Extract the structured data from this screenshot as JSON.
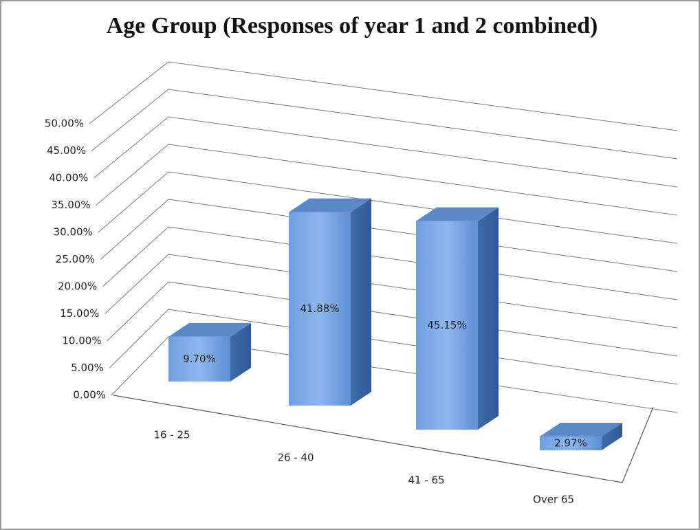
{
  "chart_data": {
    "type": "bar3d",
    "title": "Age Group (Responses of year 1 and 2 combined)",
    "categories": [
      "16 - 25",
      "26 - 40",
      "41 - 65",
      "Over 65"
    ],
    "values": [
      9.7,
      41.88,
      45.15,
      2.97
    ],
    "value_labels": [
      "9.70%",
      "41.88%",
      "45.15%",
      "2.97%"
    ],
    "color": "#4f81bd",
    "ylim": [
      0,
      50
    ],
    "yticks": [
      {
        "value": 0,
        "label": "0.00%"
      },
      {
        "value": 5,
        "label": "5.00%"
      },
      {
        "value": 10,
        "label": "10.00%"
      },
      {
        "value": 15,
        "label": "15.00%"
      },
      {
        "value": 20,
        "label": "20.00%"
      },
      {
        "value": 25,
        "label": "25.00%"
      },
      {
        "value": 30,
        "label": "30.00%"
      },
      {
        "value": 35,
        "label": "35.00%"
      },
      {
        "value": 40,
        "label": "40.00%"
      },
      {
        "value": 45,
        "label": "45.00%"
      },
      {
        "value": 50,
        "label": "50.00%"
      }
    ],
    "grid": true
  }
}
